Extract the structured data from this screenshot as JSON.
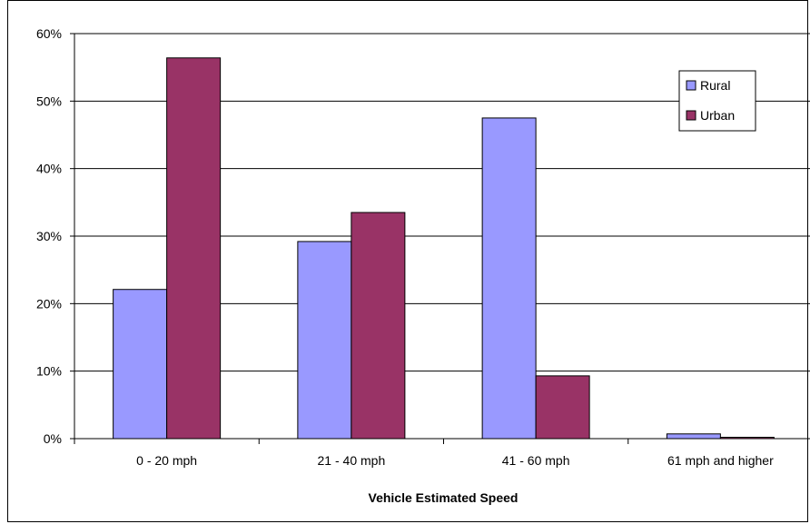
{
  "chart_data": {
    "type": "bar",
    "title": "",
    "xlabel": "Vehicle Estimated Speed",
    "ylabel": "",
    "categories": [
      "0 - 20 mph",
      "21 - 40 mph",
      "41 - 60 mph",
      "61 mph and higher"
    ],
    "series": [
      {
        "name": "Rural",
        "values": [
          22.1,
          29.2,
          47.5,
          0.7
        ],
        "color": "#9999ff"
      },
      {
        "name": "Urban",
        "values": [
          56.4,
          33.5,
          9.3,
          0.2
        ],
        "color": "#993366"
      }
    ],
    "ylim": [
      0,
      60
    ],
    "yticks": [
      0,
      10,
      20,
      30,
      40,
      50,
      60
    ],
    "ytick_labels": [
      "0%",
      "10%",
      "20%",
      "30%",
      "40%",
      "50%",
      "60%"
    ],
    "grid": true,
    "legend_position": "top-right"
  }
}
